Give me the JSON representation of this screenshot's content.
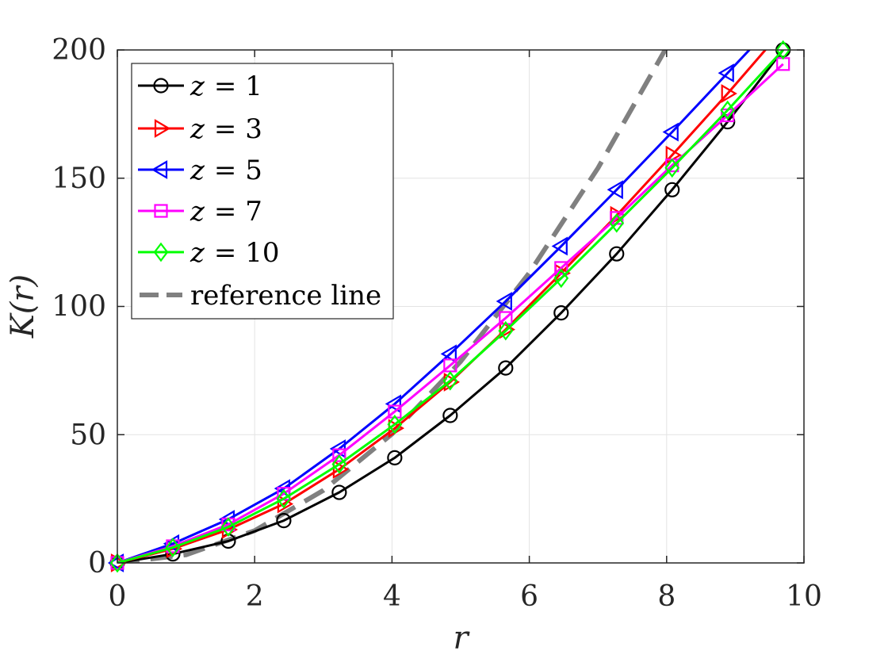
{
  "chart_data": {
    "type": "line",
    "xlabel": "r",
    "ylabel": "K(r)",
    "xlim": [
      0,
      10
    ],
    "ylim": [
      0,
      200
    ],
    "xticks": [
      "0",
      "2",
      "4",
      "6",
      "8",
      "10"
    ],
    "yticks": [
      "0",
      "50",
      "100",
      "150",
      "200"
    ],
    "grid": true,
    "legend_position": "top-left",
    "x": [
      0,
      0.808,
      1.616,
      2.424,
      3.232,
      4.04,
      4.848,
      5.656,
      6.464,
      7.272,
      8.08,
      8.888,
      9.696
    ],
    "series": [
      {
        "name": "z = 1",
        "var": "z",
        "eq": "= 1",
        "color": "#000000",
        "marker": "circle",
        "dashed": false,
        "values": [
          0,
          3.5,
          8.5,
          16.5,
          27.5,
          41,
          57.5,
          76,
          97.5,
          120.5,
          145.5,
          172,
          200
        ]
      },
      {
        "name": "z = 3",
        "var": "z",
        "eq": "= 3",
        "color": "#ff0000",
        "marker": "triangle-right",
        "dashed": false,
        "values": [
          0,
          5.5,
          13,
          23,
          36.5,
          52.5,
          70.5,
          91,
          113,
          135.5,
          159,
          183,
          208
        ]
      },
      {
        "name": "z = 5",
        "var": "z",
        "eq": "= 5",
        "color": "#0000ff",
        "marker": "triangle-left",
        "dashed": false,
        "values": [
          0,
          7.5,
          17,
          29,
          44.5,
          62,
          81.5,
          102,
          123.5,
          145.5,
          168,
          191,
          214
        ]
      },
      {
        "name": "z = 7",
        "var": "z",
        "eq": "= 7",
        "color": "#ff00ff",
        "marker": "square",
        "dashed": false,
        "values": [
          0,
          6.5,
          15,
          27,
          42,
          59,
          77,
          95.5,
          115,
          134.5,
          155,
          174.5,
          194.5
        ]
      },
      {
        "name": "z = 10",
        "var": "z",
        "eq": "= 10",
        "color": "#00ff00",
        "marker": "diamond",
        "dashed": false,
        "values": [
          0,
          6,
          14,
          25,
          38.5,
          54,
          71,
          90.5,
          111,
          132.5,
          154,
          176.5,
          200
        ]
      },
      {
        "name": "reference line",
        "var": "",
        "eq": "reference line",
        "color": "#808080",
        "marker": "none",
        "dashed": true,
        "x": [
          0,
          1,
          2,
          3,
          4,
          5,
          6,
          7,
          8
        ],
        "values": [
          0,
          3.1416,
          12.566,
          28.274,
          50.265,
          78.54,
          113.1,
          153.94,
          201.06
        ]
      }
    ]
  }
}
